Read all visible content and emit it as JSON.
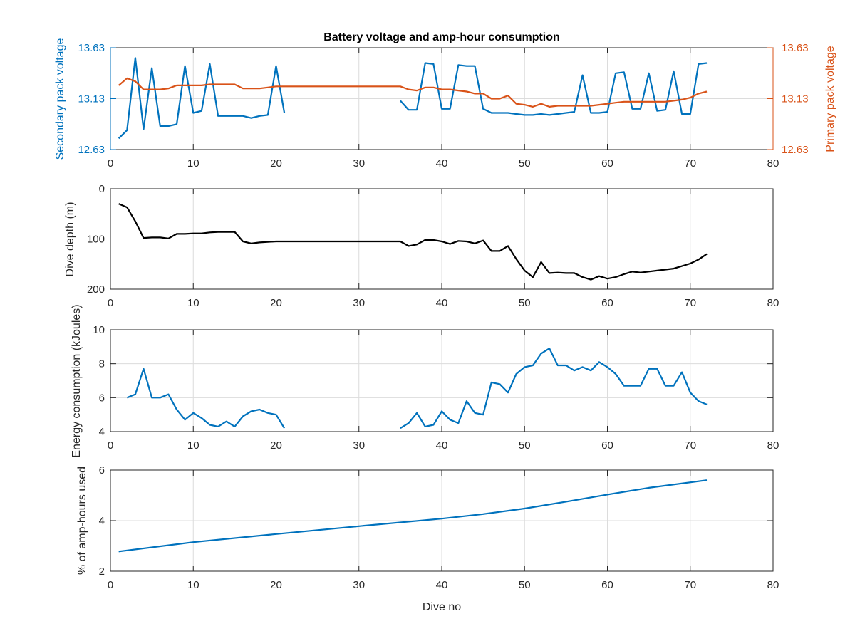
{
  "figure": {
    "title": "Battery voltage and amp-hour consumption"
  },
  "colors": {
    "blue": "#0072BD",
    "orange": "#D95319",
    "black": "#000000",
    "axis": "#262626",
    "grid": "#dcdcdc"
  },
  "chart_data": [
    {
      "id": "voltage",
      "type": "line",
      "title": "Battery voltage and amp-hour consumption",
      "xlabel": "",
      "ylabel": "Secondary pack voltage",
      "ylabel_right": "Primary pack voltage",
      "xlim": [
        0,
        80
      ],
      "ylim": [
        12.63,
        13.63
      ],
      "xticks": [
        0,
        10,
        20,
        30,
        40,
        50,
        60,
        70,
        80
      ],
      "yticks": [
        12.63,
        13.13,
        13.63
      ],
      "ytick_labels": [
        "12.63",
        "13.13",
        "13.63"
      ],
      "grid": true,
      "series": [
        {
          "axis": "left",
          "color": "#0072BD",
          "x": [
            1,
            2,
            3,
            4,
            5,
            6,
            7,
            8,
            9,
            10,
            11,
            12,
            13,
            14,
            15,
            16,
            17,
            18,
            19,
            20,
            21,
            null,
            35,
            36,
            37,
            38,
            39,
            40,
            41,
            42,
            43,
            44,
            45,
            46,
            47,
            48,
            49,
            50,
            51,
            52,
            53,
            54,
            55,
            56,
            57,
            58,
            59,
            60,
            61,
            62,
            63,
            64,
            65,
            66,
            67,
            68,
            69,
            70,
            71,
            72
          ],
          "y": [
            12.74,
            12.82,
            13.53,
            12.83,
            13.43,
            12.86,
            12.86,
            12.88,
            13.45,
            12.99,
            13.01,
            13.47,
            12.96,
            12.96,
            12.96,
            12.96,
            12.94,
            12.96,
            12.97,
            13.45,
            12.99,
            null,
            13.11,
            13.02,
            13.02,
            13.48,
            13.47,
            13.03,
            13.03,
            13.46,
            13.45,
            13.45,
            13.03,
            12.99,
            12.99,
            12.99,
            12.98,
            12.97,
            12.97,
            12.98,
            12.97,
            12.98,
            12.99,
            13.0,
            13.36,
            12.99,
            12.99,
            13.0,
            13.38,
            13.39,
            13.03,
            13.03,
            13.38,
            13.01,
            13.02,
            13.4,
            12.98,
            12.98,
            13.47,
            13.48
          ]
        },
        {
          "axis": "right",
          "color": "#D95319",
          "x": [
            1,
            2,
            3,
            4,
            5,
            6,
            7,
            8,
            9,
            10,
            11,
            12,
            13,
            14,
            15,
            16,
            17,
            18,
            19,
            20,
            21,
            22,
            23,
            24,
            25,
            26,
            27,
            28,
            29,
            30,
            31,
            32,
            33,
            34,
            35,
            36,
            37,
            38,
            39,
            40,
            41,
            42,
            43,
            44,
            45,
            46,
            47,
            48,
            49,
            50,
            51,
            52,
            53,
            54,
            55,
            56,
            57,
            58,
            59,
            60,
            61,
            62,
            63,
            64,
            65,
            66,
            67,
            68,
            69,
            70,
            71,
            72
          ],
          "y": [
            13.26,
            13.33,
            13.3,
            13.22,
            13.22,
            13.22,
            13.23,
            13.26,
            13.26,
            13.26,
            13.26,
            13.27,
            13.27,
            13.27,
            13.27,
            13.23,
            13.23,
            13.23,
            13.24,
            13.25,
            13.25,
            13.25,
            13.25,
            13.25,
            13.25,
            13.25,
            13.25,
            13.25,
            13.25,
            13.25,
            13.25,
            13.25,
            13.25,
            13.25,
            13.25,
            13.22,
            13.21,
            13.24,
            13.24,
            13.22,
            13.22,
            13.21,
            13.2,
            13.18,
            13.18,
            13.13,
            13.13,
            13.16,
            13.08,
            13.07,
            13.05,
            13.08,
            13.05,
            13.06,
            13.06,
            13.06,
            13.06,
            13.06,
            13.07,
            13.08,
            13.09,
            13.1,
            13.1,
            13.1,
            13.1,
            13.1,
            13.1,
            13.11,
            13.12,
            13.14,
            13.18,
            13.2
          ]
        }
      ]
    },
    {
      "id": "depth",
      "type": "line",
      "xlabel": "",
      "ylabel": "Dive depth (m)",
      "xlim": [
        0,
        80
      ],
      "ylim": [
        200,
        0
      ],
      "reversed": true,
      "xticks": [
        0,
        10,
        20,
        30,
        40,
        50,
        60,
        70,
        80
      ],
      "yticks": [
        0,
        100,
        200
      ],
      "ytick_labels": [
        "0",
        "100",
        "200"
      ],
      "grid": true,
      "series": [
        {
          "color": "#000000",
          "x": [
            1,
            2,
            3,
            4,
            5,
            6,
            7,
            8,
            9,
            10,
            11,
            12,
            13,
            14,
            15,
            16,
            17,
            18,
            19,
            20,
            21,
            22,
            23,
            24,
            25,
            26,
            27,
            28,
            29,
            30,
            31,
            32,
            33,
            34,
            35,
            36,
            37,
            38,
            39,
            40,
            41,
            42,
            43,
            44,
            45,
            46,
            47,
            48,
            49,
            50,
            51,
            52,
            53,
            54,
            55,
            56,
            57,
            58,
            59,
            60,
            61,
            62,
            63,
            64,
            65,
            66,
            67,
            68,
            69,
            70,
            71,
            72
          ],
          "y": [
            30,
            37,
            65,
            98,
            97,
            97,
            99,
            90,
            90,
            89,
            89,
            87,
            86,
            86,
            86,
            105,
            109,
            107,
            106,
            105,
            105,
            105,
            105,
            105,
            105,
            105,
            105,
            105,
            105,
            105,
            105,
            105,
            105,
            105,
            105,
            114,
            111,
            102,
            102,
            105,
            110,
            104,
            105,
            109,
            103,
            124,
            124,
            114,
            140,
            163,
            176,
            146,
            168,
            167,
            168,
            168,
            176,
            181,
            174,
            179,
            176,
            170,
            165,
            167,
            165,
            163,
            161,
            159,
            154,
            149,
            141,
            130
          ]
        }
      ]
    },
    {
      "id": "energy",
      "type": "line",
      "xlabel": "",
      "ylabel": "Energy consumption (kJoules)",
      "xlim": [
        0,
        80
      ],
      "ylim": [
        4,
        10
      ],
      "xticks": [
        0,
        10,
        20,
        30,
        40,
        50,
        60,
        70,
        80
      ],
      "yticks": [
        4,
        6,
        8,
        10
      ],
      "ytick_labels": [
        "4",
        "6",
        "8",
        "10"
      ],
      "grid": true,
      "series": [
        {
          "color": "#0072BD",
          "x": [
            2,
            3,
            4,
            5,
            6,
            7,
            8,
            9,
            10,
            11,
            12,
            13,
            14,
            15,
            16,
            17,
            18,
            19,
            20,
            21,
            null,
            35,
            36,
            37,
            38,
            39,
            40,
            41,
            42,
            43,
            44,
            45,
            46,
            47,
            48,
            49,
            50,
            51,
            52,
            53,
            54,
            55,
            56,
            57,
            58,
            59,
            60,
            61,
            62,
            63,
            64,
            65,
            66,
            67,
            68,
            69,
            70,
            71,
            72
          ],
          "y": [
            6.0,
            6.2,
            7.7,
            6.0,
            6.0,
            6.2,
            5.3,
            4.7,
            5.1,
            4.8,
            4.4,
            4.3,
            4.6,
            4.3,
            4.9,
            5.2,
            5.3,
            5.1,
            5.0,
            4.2,
            null,
            4.2,
            4.5,
            5.1,
            4.3,
            4.4,
            5.2,
            4.7,
            4.5,
            5.8,
            5.1,
            5.0,
            6.9,
            6.8,
            6.3,
            7.4,
            7.8,
            7.9,
            8.6,
            8.9,
            7.9,
            7.9,
            7.6,
            7.8,
            7.6,
            8.1,
            7.8,
            7.4,
            6.7,
            6.7,
            6.7,
            7.7,
            7.7,
            6.7,
            6.7,
            7.5,
            6.3,
            5.8,
            5.6
          ]
        }
      ]
    },
    {
      "id": "amphours",
      "type": "line",
      "xlabel": "Dive no",
      "ylabel": "% of amp-hours used",
      "xlim": [
        0,
        80
      ],
      "ylim": [
        2,
        6
      ],
      "xticks": [
        0,
        10,
        20,
        30,
        40,
        50,
        60,
        70,
        80
      ],
      "yticks": [
        2,
        4,
        6
      ],
      "ytick_labels": [
        "2",
        "4",
        "6"
      ],
      "grid": true,
      "series": [
        {
          "color": "#0072BD",
          "x": [
            1,
            10,
            20,
            30,
            40,
            45,
            50,
            55,
            60,
            65,
            72
          ],
          "y": [
            2.78,
            3.15,
            3.47,
            3.78,
            4.08,
            4.26,
            4.48,
            4.75,
            5.03,
            5.3,
            5.6
          ]
        }
      ]
    }
  ]
}
